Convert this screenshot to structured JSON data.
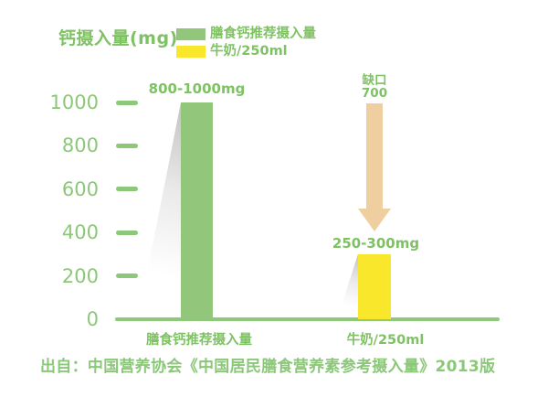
{
  "title": "钙摄入量(mg)",
  "legend": {
    "items": [
      {
        "label": "膳食钙推荐摄入量",
        "color": "#92c77b"
      },
      {
        "label": "牛奶/250ml",
        "color": "#f8e72b"
      }
    ]
  },
  "source": "出自：中国营养协会《中国居民膳食营养素参考摄入量》2013版",
  "colors": {
    "text_green": "#7ec263",
    "axis_green": "#8cc87a",
    "bar_green": "#92c77b",
    "bar_yellow": "#f8e72b",
    "arrow_tan": "#efcfa0"
  },
  "chart_data": {
    "type": "bar",
    "title": "钙摄入量(mg)",
    "categories": [
      "膳食钙推荐摄入量",
      "牛奶/250ml"
    ],
    "values": [
      1000,
      300
    ],
    "value_labels": [
      "800-1000mg",
      "250-300mg"
    ],
    "bar_colors": [
      "#92c77b",
      "#f8e72b"
    ],
    "ylim": [
      0,
      1000
    ],
    "yticks": [
      0,
      200,
      400,
      600,
      800,
      1000
    ],
    "grid": false,
    "legend_position": "top",
    "annotations": [
      {
        "type": "arrow-down",
        "text": "缺口",
        "value": "700",
        "from": 1000,
        "to": 300,
        "color": "#efcfa0"
      }
    ]
  }
}
